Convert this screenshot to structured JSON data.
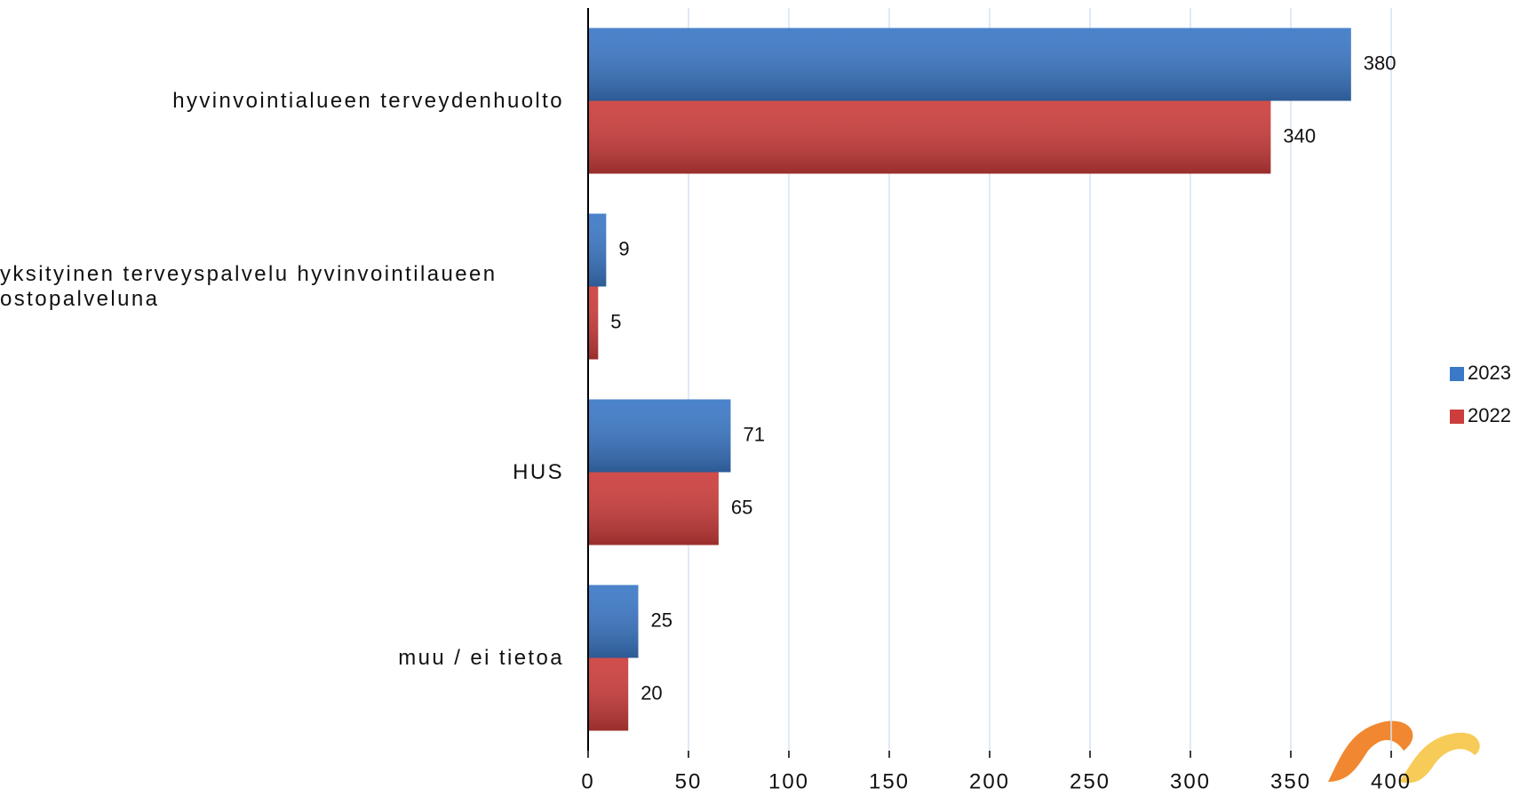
{
  "chart_data": {
    "type": "bar",
    "orientation": "horizontal",
    "categories": [
      "hyvinvointialueen terveydenhuolto",
      "yksityinen terveyspalvelu hyvinvointilaueen ostopalveluna",
      "HUS",
      "muu / ei tietoa"
    ],
    "series": [
      {
        "name": "2023",
        "color": "#3b78c6",
        "values": [
          380,
          9,
          71,
          25
        ]
      },
      {
        "name": "2022",
        "color": "#cc3d3b",
        "values": [
          340,
          5,
          65,
          20
        ]
      }
    ],
    "xlim": [
      0,
      400
    ],
    "xticks": [
      0,
      50,
      100,
      150,
      200,
      250,
      300,
      350,
      400
    ],
    "grid": true,
    "legend": "right"
  }
}
